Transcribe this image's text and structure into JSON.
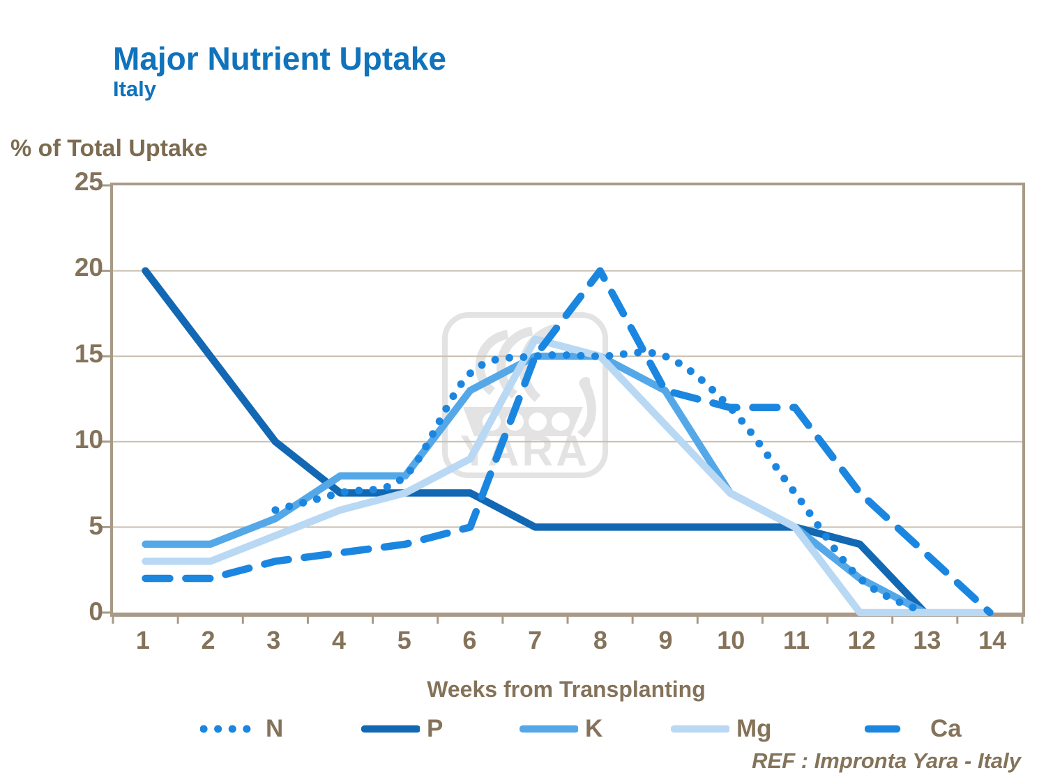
{
  "title": "Major Nutrient Uptake",
  "subtitle": "Italy",
  "y_axis_label": "% of Total Uptake",
  "x_axis_label": "Weeks from Transplanting",
  "ref_text": "REF : Impronta  Yara - Italy",
  "watermark_text": "YARA",
  "colors": {
    "title_blue": "#1073bb",
    "axis_text_brown": "#84735a",
    "gridline": "#c9bfb0",
    "frame": "#a89a88",
    "watermark_gray": "#e3e3e3",
    "n_line": "#1b86e0",
    "p_line": "#1268b3",
    "k_line": "#55a8e8",
    "mg_line": "#b9d8f3",
    "ca_line": "#1b86e0"
  },
  "chart_data": {
    "type": "line",
    "title": "Major Nutrient Uptake - Italy",
    "xlabel": "Weeks from Transplanting",
    "ylabel": "% of Total Uptake",
    "x_categories": [
      1,
      2,
      3,
      4,
      5,
      6,
      7,
      8,
      9,
      10,
      11,
      12,
      13,
      14
    ],
    "ylim": [
      0,
      25
    ],
    "yticks": [
      25,
      20,
      15,
      10,
      5,
      0
    ],
    "grid": "horizontal",
    "legend_position": "bottom",
    "series": [
      {
        "name": "N",
        "style": "dotted",
        "smooth": true,
        "color": "#1b86e0",
        "start_week": 3,
        "values": [
          6,
          7,
          8,
          14,
          15,
          15,
          15,
          12,
          7,
          2,
          0
        ]
      },
      {
        "name": "P",
        "style": "solid",
        "smooth": false,
        "color": "#1268b3",
        "start_week": 1,
        "values": [
          20,
          15,
          10,
          7,
          7,
          7,
          5,
          5,
          5,
          5,
          5,
          4,
          0
        ]
      },
      {
        "name": "K",
        "style": "solid",
        "smooth": false,
        "color": "#55a8e8",
        "start_week": 1,
        "values": [
          4,
          4,
          5.5,
          8,
          8,
          13,
          15,
          15,
          13,
          7,
          5,
          2,
          0
        ]
      },
      {
        "name": "Mg",
        "style": "solid",
        "smooth": false,
        "color": "#b9d8f3",
        "start_week": 1,
        "values": [
          3,
          3,
          4.5,
          6,
          7,
          9,
          16,
          15,
          11,
          7,
          5,
          0,
          0,
          0
        ]
      },
      {
        "name": "Ca",
        "style": "dashed",
        "smooth": false,
        "color": "#1b86e0",
        "start_week": 1,
        "values": [
          2,
          2,
          3,
          3.5,
          4,
          5,
          15,
          20,
          13,
          12,
          12,
          7,
          3.5,
          0
        ]
      }
    ]
  }
}
